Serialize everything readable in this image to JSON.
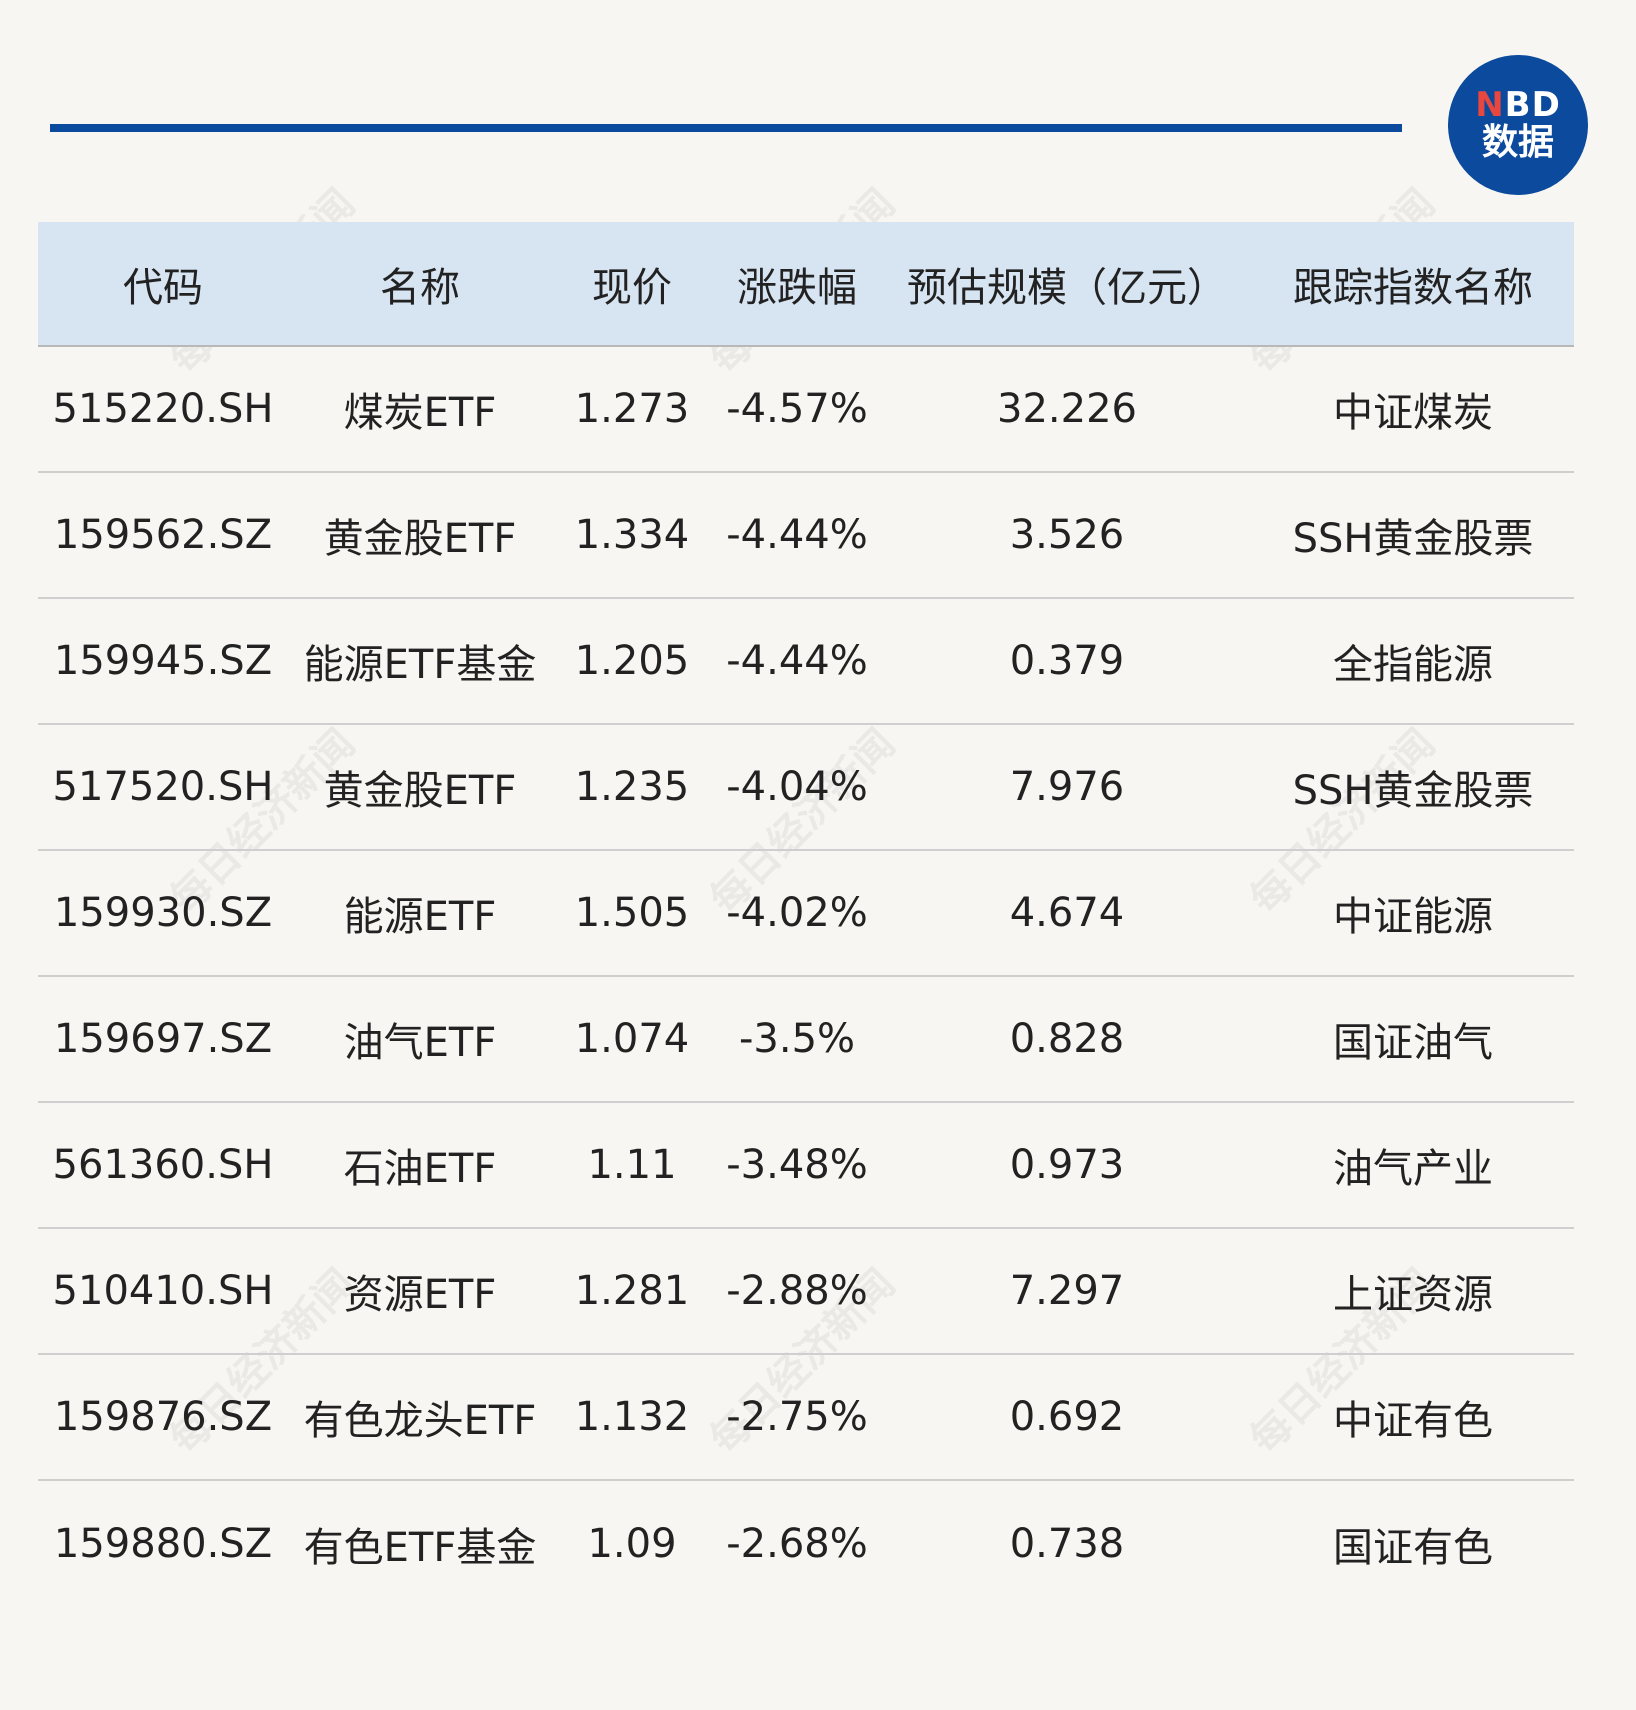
{
  "colors": {
    "accent": "#0b4a9c",
    "header_bg": "#d7e4f1",
    "page_bg": "#f8f6f2",
    "logo_red": "#e8473f"
  },
  "logo": {
    "line1_red": "N",
    "line1_rest": "BD",
    "line2": "数据"
  },
  "watermark_text": "每日经济新闻",
  "chart_data": {
    "type": "table",
    "columns": [
      "代码",
      "名称",
      "现价",
      "涨跌幅",
      "预估规模（亿元）",
      "跟踪指数名称"
    ],
    "rows": [
      [
        "515220.SH",
        "煤炭ETF",
        "1.273",
        "-4.57%",
        "32.226",
        "中证煤炭"
      ],
      [
        "159562.SZ",
        "黄金股ETF",
        "1.334",
        "-4.44%",
        "3.526",
        "SSH黄金股票"
      ],
      [
        "159945.SZ",
        "能源ETF基金",
        "1.205",
        "-4.44%",
        "0.379",
        "全指能源"
      ],
      [
        "517520.SH",
        "黄金股ETF",
        "1.235",
        "-4.04%",
        "7.976",
        "SSH黄金股票"
      ],
      [
        "159930.SZ",
        "能源ETF",
        "1.505",
        "-4.02%",
        "4.674",
        "中证能源"
      ],
      [
        "159697.SZ",
        "油气ETF",
        "1.074",
        "-3.5%",
        "0.828",
        "国证油气"
      ],
      [
        "561360.SH",
        "石油ETF",
        "1.11",
        "-3.48%",
        "0.973",
        "油气产业"
      ],
      [
        "510410.SH",
        "资源ETF",
        "1.281",
        "-2.88%",
        "7.297",
        "上证资源"
      ],
      [
        "159876.SZ",
        "有色龙头ETF",
        "1.132",
        "-2.75%",
        "0.692",
        "中证有色"
      ],
      [
        "159880.SZ",
        "有色ETF基金",
        "1.09",
        "-2.68%",
        "0.738",
        "国证有色"
      ]
    ]
  }
}
